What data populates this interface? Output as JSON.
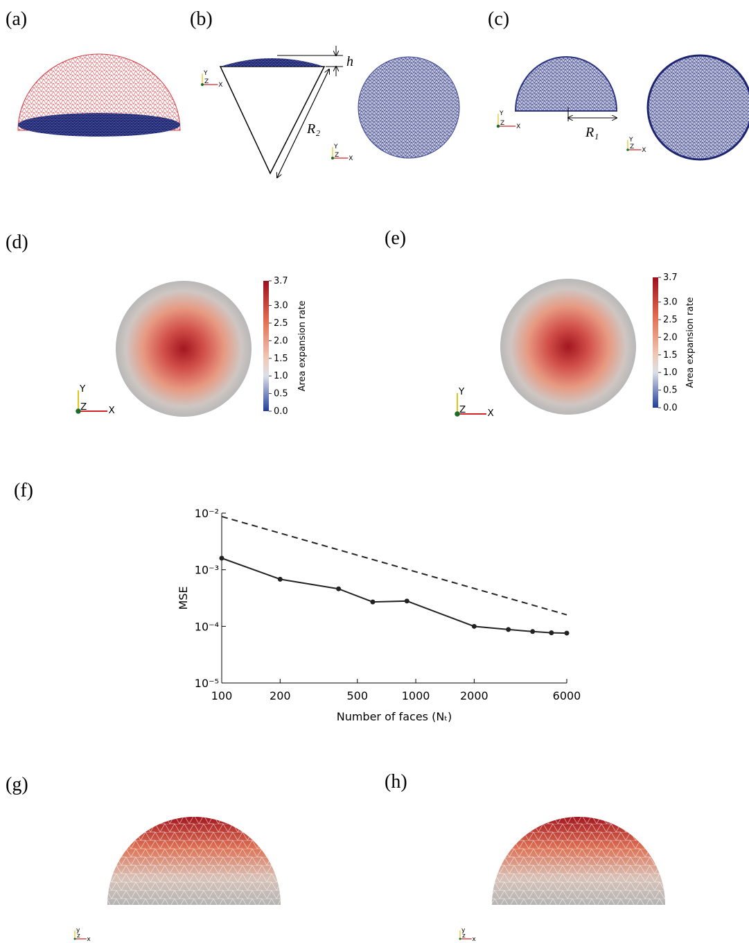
{
  "panel_labels": [
    "(a)",
    "(b)",
    "(c)",
    "(d)",
    "(e)",
    "(f)",
    "(g)",
    "(h)"
  ],
  "annotations": {
    "h": "h",
    "R2": "R₂",
    "R1": "R₁"
  },
  "triads": [
    {
      "x": "X",
      "y": "Y",
      "z": "Z"
    },
    {
      "x": "X",
      "y": "Y",
      "z": "Z"
    },
    {
      "x": "X",
      "y": "Y",
      "z": "Z"
    },
    {
      "x": "X",
      "y": "Y",
      "z": "Z"
    },
    {
      "x": "X",
      "y": "Y",
      "z": "Z"
    },
    {
      "x": "X",
      "y": "Y",
      "z": "Z"
    },
    {
      "x": "x",
      "y": "y",
      "z": "z"
    },
    {
      "x": "x",
      "y": "y",
      "z": "z"
    }
  ],
  "colorbar": {
    "label": "Area expansion rate",
    "lim": [
      0,
      3.7
    ],
    "ticks": [
      {
        "value": 0,
        "label": "0.0"
      },
      0.5,
      {
        "value": 1,
        "label": "1.0"
      },
      1.5,
      {
        "value": 2,
        "label": "2.0"
      },
      2.5,
      {
        "value": 3,
        "label": "3.0"
      },
      3.7
    ]
  },
  "chart_data": {
    "type": "line",
    "xlabel": "Number of faces (Nₜ)",
    "ylabel": "MSE",
    "xscale": "log",
    "yscale": "log",
    "x": [
      100,
      200,
      400,
      600,
      900,
      2000,
      3000,
      4000,
      5000,
      6000
    ],
    "series": [
      {
        "color": "#222222",
        "values": [
          0.0016,
          0.00068,
          0.00046,
          0.00027,
          0.00028,
          0.0001,
          8.8e-05,
          8.1e-05,
          7.7e-05,
          7.6e-05
        ]
      },
      {
        "color": "#222222",
        "dashed": true,
        "x": [
          100,
          6000
        ],
        "values": [
          0.0087,
          0.00016
        ]
      }
    ],
    "xlim": [
      100,
      6000
    ],
    "ylim": [
      1e-05,
      0.01
    ],
    "xticks": [
      100,
      200,
      500,
      1000,
      2000,
      6000
    ],
    "yticks": [
      {
        "value": 0.01,
        "label": "10⁻²"
      },
      {
        "value": 0.001,
        "label": "10⁻³"
      },
      {
        "value": 0.0001,
        "label": "10⁻⁴"
      },
      {
        "value": 1e-05,
        "label": "10⁻⁵"
      }
    ]
  }
}
